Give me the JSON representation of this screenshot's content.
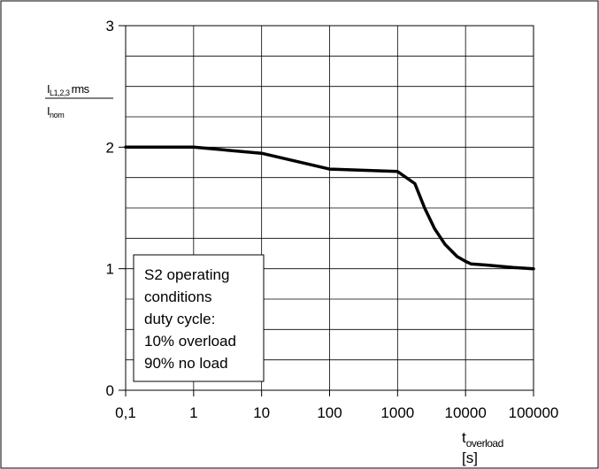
{
  "chart_data": {
    "type": "line",
    "x_scale": "log",
    "x_tick_labels": [
      "0,1",
      "1",
      "10",
      "100",
      "1000",
      "10000",
      "100000"
    ],
    "x_ticks": [
      0.1,
      1,
      10,
      100,
      1000,
      10000,
      100000
    ],
    "xlim": [
      0.1,
      100000
    ],
    "y_ticks": [
      0,
      1,
      2,
      3
    ],
    "y_tick_labels": [
      "0",
      "1",
      "2",
      "3"
    ],
    "ylim": [
      0,
      3
    ],
    "y_minor_step": 0.25,
    "grid": true,
    "xlabel": {
      "main": "t",
      "sub": "overload",
      "unit": "[s]"
    },
    "ylabel": {
      "num_main": "I",
      "num_sub": "L1,2,3",
      "num_tail": "rms",
      "den_main": "I",
      "den_sub": "nom"
    },
    "annotation": [
      "S2 operating",
      "conditions",
      "duty cycle:",
      "10% overload",
      "90% no load"
    ],
    "series": [
      {
        "x": [
          0.1,
          1,
          10,
          100,
          1000,
          1800,
          2500,
          3500,
          5000,
          7500,
          10000,
          12000,
          20000,
          50000,
          100000
        ],
        "y": [
          2.0,
          2.0,
          1.95,
          1.82,
          1.8,
          1.7,
          1.5,
          1.33,
          1.2,
          1.1,
          1.06,
          1.04,
          1.03,
          1.01,
          1.0
        ]
      }
    ],
    "line_color": "#000000"
  }
}
